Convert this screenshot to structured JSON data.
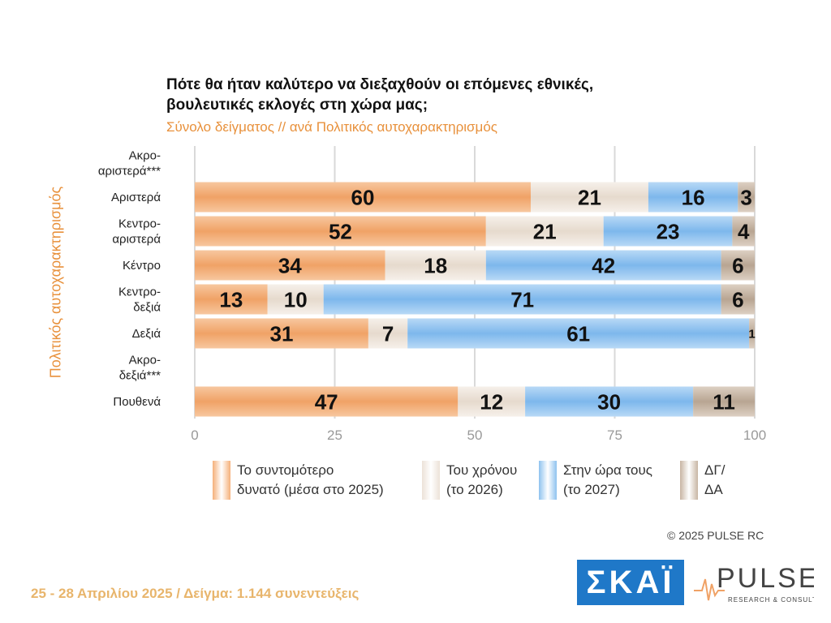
{
  "title": "Πότε θα ήταν καλύτερο να διεξαχθούν οι επόμενες εθνικές, βουλευτικές εκλογές στη χώρα μας;",
  "subtitle": "Σύνολο δείγματος // ανά Πολιτικός αυτοχαρακτηρισμός",
  "copyright": "©  2025  PULSE RC",
  "footer": "25 - 28 Απριλίου 2025  /  Δείγμα:  1.144 συνεντεύξεις",
  "logos": {
    "skai": "ΣΚΑΪ",
    "pulse": "PULSE",
    "pulse_sub": "RESEARCH & CONSULTING"
  },
  "colors": {
    "series1": "#f5b07a",
    "series2": "#ece2d8",
    "series3": "#8ec2ef",
    "series4": "#c7b5a3"
  },
  "chart_data": {
    "type": "bar",
    "orientation": "horizontal",
    "stacked": true,
    "title": "Πότε θα ήταν καλύτερο να διεξαχθούν οι επόμενες εθνικές, βουλευτικές εκλογές στη χώρα μας;",
    "subtitle": "Σύνολο δείγματος // ανά Πολιτικός αυτοχαρακτηρισμός",
    "ylabel": "Πολιτικός αυτοχαρακτηρισμός",
    "xlabel": "",
    "xlim": [
      0,
      100
    ],
    "xticks": [
      0,
      25,
      50,
      75,
      100
    ],
    "grid": true,
    "legend_position": "bottom",
    "categories": [
      "Ακρο-\nαριστερά***",
      "Αριστερά",
      "Κεντρο-\nαριστερά",
      "Κέντρο",
      "Κεντρο-\nδεξιά",
      "Δεξιά",
      "Ακρο-\nδεξιά***",
      "Πουθενά"
    ],
    "series": [
      {
        "name": "Το συντομότερο\nδυνατό (μέσα στο 2025)",
        "values": [
          null,
          60,
          52,
          34,
          13,
          31,
          null,
          47
        ]
      },
      {
        "name": "Του χρόνου\n(το 2026)",
        "values": [
          null,
          21,
          21,
          18,
          10,
          7,
          null,
          12
        ]
      },
      {
        "name": "Στην ώρα τους\n(το 2027)",
        "values": [
          null,
          16,
          23,
          42,
          71,
          61,
          null,
          30
        ]
      },
      {
        "name": "ΔΓ/\nΔΑ",
        "values": [
          null,
          3,
          4,
          6,
          6,
          1,
          null,
          11
        ]
      }
    ]
  }
}
